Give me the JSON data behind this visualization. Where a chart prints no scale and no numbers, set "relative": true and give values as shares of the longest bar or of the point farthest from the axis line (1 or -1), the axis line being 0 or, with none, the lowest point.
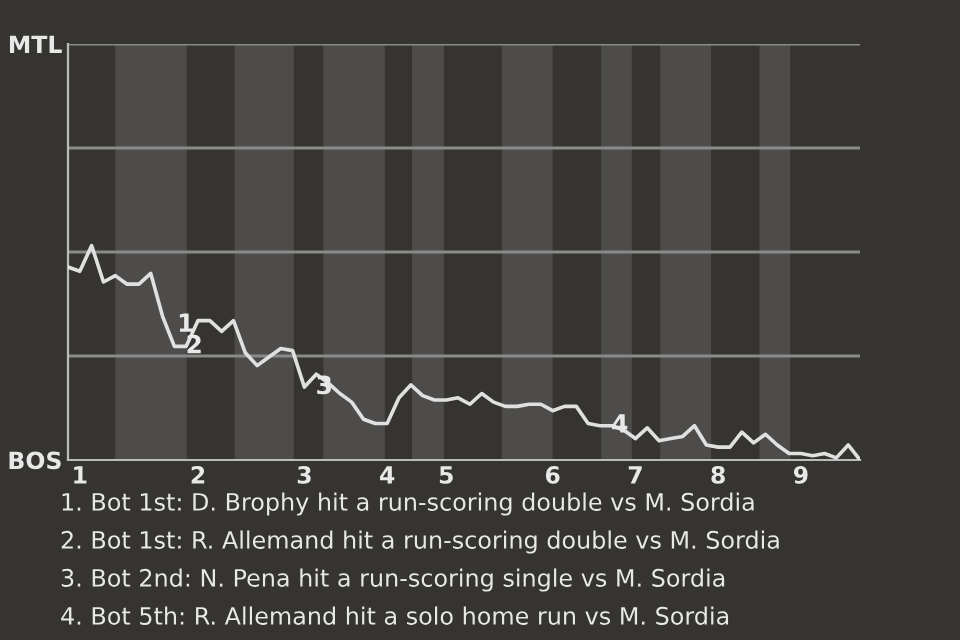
{
  "chart_data": {
    "type": "line",
    "relative": true,
    "y_categories": [
      "MTL",
      "BOS"
    ],
    "categories": [
      null,
      "1",
      null,
      null,
      null,
      null,
      null,
      null,
      null,
      null,
      null,
      "2",
      null,
      null,
      null,
      null,
      null,
      null,
      null,
      null,
      "3",
      null,
      null,
      null,
      null,
      null,
      null,
      "4",
      null,
      null,
      null,
      null,
      "5",
      null,
      null,
      null,
      null,
      null,
      null,
      null,
      null,
      "6",
      null,
      null,
      null,
      null,
      null,
      null,
      "7",
      null,
      null,
      null,
      null,
      null,
      null,
      "8",
      null,
      null,
      null,
      null,
      null,
      null,
      "9",
      null,
      null,
      null,
      null,
      null
    ],
    "marker": "none",
    "line_style": "solid",
    "ref_lines": [
      {
        "axis": "y",
        "value": 0.485,
        "color": "#8a8a8a"
      },
      {
        "axis": "y",
        "value": 0.97,
        "color": "#8a8a8a"
      },
      {
        "axis": "y",
        "value": 1.455,
        "color": "#8a8a8a"
      },
      {
        "axis": "y",
        "value": 1.94,
        "color": "#8a8a8a"
      }
    ],
    "series": [
      {
        "color": "#e0e0e0",
        "values": [
          0.9,
          0.88,
          1,
          0.83,
          0.86,
          0.82,
          0.82,
          0.87,
          0.67,
          0.53,
          0.53,
          0.65,
          0.65,
          0.6,
          0.65,
          0.5,
          0.44,
          0.48,
          0.52,
          0.51,
          0.34,
          0.4,
          0.36,
          0.31,
          0.27,
          0.19,
          0.17,
          0.17,
          0.29,
          0.35,
          0.3,
          0.28,
          0.28,
          0.29,
          0.26,
          0.31,
          0.27,
          0.25,
          0.25,
          0.26,
          0.26,
          0.23,
          0.25,
          0.25,
          0.17,
          0.16,
          0.16,
          0.14,
          0.1,
          0.15,
          0.09,
          0.1,
          0.11,
          0.16,
          0.07,
          0.06,
          0.06,
          0.13,
          0.08,
          0.12,
          0.07,
          0.03,
          0.03,
          0.02,
          0.03,
          0.01,
          0.07,
          0
        ]
      }
    ],
    "annotations": [
      {
        "text": "1",
        "y": 0.63
      },
      {
        "text": "2",
        "y": 0.53
      },
      {
        "text": "3",
        "y": 0.34
      },
      {
        "text": "4",
        "y": 0.16
      },
      "1. Bot 1st: D. Brophy hit a run-scoring double vs M. Sordia",
      "2. Bot 1st: R. Allemand hit a run-scoring double vs M. Sordia",
      "3. Bot 2nd: N. Pena hit a run-scoring single vs M. Sordia",
      "4. Bot 5th: R. Allemand hit a solo home run vs M. Sordia"
    ]
  }
}
